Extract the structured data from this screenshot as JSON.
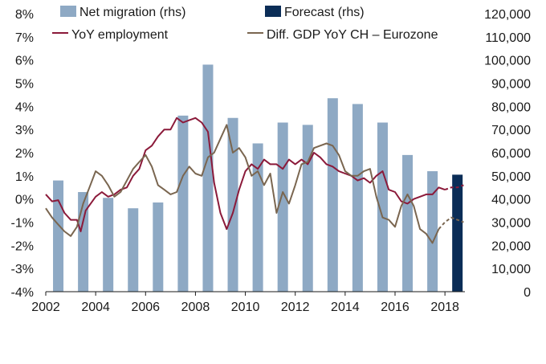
{
  "chart_data": {
    "type": "bar",
    "y_left": {
      "range": [
        -4,
        8
      ],
      "ticks": [
        "8%",
        "7%",
        "6%",
        "5%",
        "4%",
        "3%",
        "2%",
        "1%",
        "0%",
        "-1%",
        "-2%",
        "-3%",
        "-4%"
      ]
    },
    "y_right": {
      "range": [
        0,
        120000
      ],
      "ticks": [
        "120,000",
        "110,000",
        "100,000",
        "90,000",
        "80,000",
        "70,000",
        "60,000",
        "50,000",
        "40,000",
        "30,000",
        "20,000",
        "10,000",
        "0"
      ]
    },
    "x_range": [
      2002,
      2018.8
    ],
    "x_ticks": [
      "2002",
      "2004",
      "2006",
      "2008",
      "2010",
      "2012",
      "2014",
      "2016",
      "2018"
    ],
    "grid": false,
    "legend": [
      {
        "label": "Net migration (rhs)",
        "color": "#8ea9c4",
        "kind": "bar"
      },
      {
        "label": "Forecast (rhs)",
        "color": "#0b2d57",
        "kind": "bar"
      },
      {
        "label": "YoY employment",
        "color": "#8b1a3a",
        "kind": "line"
      },
      {
        "label": "Diff. GDP YoY CH – Eurozone",
        "color": "#7a6650",
        "kind": "line"
      }
    ],
    "series": [
      {
        "name": "Net migration (rhs)",
        "axis": "right",
        "type": "bar",
        "color": "#8ea9c4",
        "x": [
          2002.5,
          2003.5,
          2004.5,
          2005.5,
          2006.5,
          2007.5,
          2008.5,
          2009.5,
          2010.5,
          2011.5,
          2012.5,
          2013.5,
          2014.5,
          2015.5,
          2016.5,
          2017.5
        ],
        "values": [
          48000,
          43000,
          40500,
          36000,
          38500,
          76000,
          98000,
          75000,
          64000,
          73000,
          72000,
          83500,
          81000,
          73000,
          59000,
          52000
        ]
      },
      {
        "name": "Forecast (rhs)",
        "axis": "right",
        "type": "bar",
        "color": "#0b2d57",
        "x": [
          2018.5
        ],
        "values": [
          50500
        ]
      },
      {
        "name": "YoY employment",
        "axis": "left",
        "type": "line",
        "color": "#8b1a3a",
        "points": [
          [
            2002.0,
            0.2
          ],
          [
            2002.25,
            -0.1
          ],
          [
            2002.5,
            -0.05
          ],
          [
            2002.75,
            -0.6
          ],
          [
            2003.0,
            -0.9
          ],
          [
            2003.25,
            -0.9
          ],
          [
            2003.4,
            -1.4
          ],
          [
            2003.6,
            -0.5
          ],
          [
            2003.8,
            -0.2
          ],
          [
            2004.0,
            0.1
          ],
          [
            2004.25,
            0.3
          ],
          [
            2004.5,
            0.1
          ],
          [
            2004.75,
            0.2
          ],
          [
            2005.0,
            0.4
          ],
          [
            2005.25,
            0.5
          ],
          [
            2005.5,
            1.0
          ],
          [
            2005.75,
            1.3
          ],
          [
            2006.0,
            2.1
          ],
          [
            2006.25,
            2.3
          ],
          [
            2006.5,
            2.7
          ],
          [
            2006.75,
            3.0
          ],
          [
            2007.0,
            3.0
          ],
          [
            2007.25,
            3.5
          ],
          [
            2007.5,
            3.3
          ],
          [
            2007.75,
            3.4
          ],
          [
            2008.0,
            3.5
          ],
          [
            2008.25,
            3.3
          ],
          [
            2008.5,
            2.9
          ],
          [
            2008.75,
            0.7
          ],
          [
            2009.0,
            -0.6
          ],
          [
            2009.25,
            -1.3
          ],
          [
            2009.5,
            -0.6
          ],
          [
            2009.75,
            0.4
          ],
          [
            2010.0,
            1.2
          ],
          [
            2010.25,
            1.5
          ],
          [
            2010.5,
            1.3
          ],
          [
            2010.75,
            1.7
          ],
          [
            2011.0,
            1.5
          ],
          [
            2011.25,
            1.5
          ],
          [
            2011.5,
            1.3
          ],
          [
            2011.75,
            1.7
          ],
          [
            2012.0,
            1.5
          ],
          [
            2012.25,
            1.7
          ],
          [
            2012.5,
            1.5
          ],
          [
            2012.75,
            2.0
          ],
          [
            2013.0,
            1.8
          ],
          [
            2013.25,
            1.5
          ],
          [
            2013.5,
            1.4
          ],
          [
            2013.75,
            1.2
          ],
          [
            2014.0,
            1.1
          ],
          [
            2014.25,
            1.0
          ],
          [
            2014.5,
            0.8
          ],
          [
            2014.75,
            0.9
          ],
          [
            2015.0,
            0.7
          ],
          [
            2015.25,
            1.0
          ],
          [
            2015.5,
            1.2
          ],
          [
            2015.75,
            0.4
          ],
          [
            2016.0,
            0.3
          ],
          [
            2016.25,
            -0.1
          ],
          [
            2016.5,
            -0.2
          ],
          [
            2016.75,
            0.0
          ],
          [
            2017.0,
            0.1
          ],
          [
            2017.25,
            0.2
          ],
          [
            2017.5,
            0.2
          ],
          [
            2017.75,
            0.5
          ],
          [
            2018.0,
            0.4
          ]
        ],
        "forecast_points": [
          [
            2018.0,
            0.4
          ],
          [
            2018.25,
            0.5
          ],
          [
            2018.5,
            0.5
          ],
          [
            2018.75,
            0.6
          ]
        ]
      },
      {
        "name": "Diff. GDP YoY CH – Eurozone",
        "axis": "left",
        "type": "line",
        "color": "#7a6650",
        "points": [
          [
            2002.0,
            -0.4
          ],
          [
            2002.25,
            -0.8
          ],
          [
            2002.5,
            -1.1
          ],
          [
            2002.75,
            -1.4
          ],
          [
            2003.0,
            -1.6
          ],
          [
            2003.25,
            -1.2
          ],
          [
            2003.5,
            -0.2
          ],
          [
            2003.75,
            0.5
          ],
          [
            2004.0,
            1.2
          ],
          [
            2004.25,
            1.0
          ],
          [
            2004.5,
            0.6
          ],
          [
            2004.75,
            0.1
          ],
          [
            2005.0,
            0.3
          ],
          [
            2005.25,
            0.8
          ],
          [
            2005.5,
            1.3
          ],
          [
            2005.75,
            1.6
          ],
          [
            2006.0,
            1.9
          ],
          [
            2006.25,
            1.4
          ],
          [
            2006.5,
            0.6
          ],
          [
            2006.75,
            0.4
          ],
          [
            2007.0,
            0.2
          ],
          [
            2007.25,
            0.3
          ],
          [
            2007.5,
            1.0
          ],
          [
            2007.75,
            1.4
          ],
          [
            2008.0,
            1.1
          ],
          [
            2008.25,
            1.0
          ],
          [
            2008.5,
            1.8
          ],
          [
            2008.75,
            2.0
          ],
          [
            2009.0,
            2.6
          ],
          [
            2009.25,
            3.2
          ],
          [
            2009.5,
            2.0
          ],
          [
            2009.75,
            2.2
          ],
          [
            2010.0,
            1.8
          ],
          [
            2010.25,
            1.0
          ],
          [
            2010.5,
            1.2
          ],
          [
            2010.75,
            0.6
          ],
          [
            2011.0,
            1.1
          ],
          [
            2011.25,
            -0.6
          ],
          [
            2011.5,
            0.3
          ],
          [
            2011.75,
            -0.2
          ],
          [
            2012.0,
            0.6
          ],
          [
            2012.25,
            1.5
          ],
          [
            2012.5,
            1.6
          ],
          [
            2012.75,
            2.2
          ],
          [
            2013.0,
            2.3
          ],
          [
            2013.25,
            2.4
          ],
          [
            2013.5,
            2.3
          ],
          [
            2013.75,
            1.9
          ],
          [
            2014.0,
            1.2
          ],
          [
            2014.25,
            1.0
          ],
          [
            2014.5,
            1.0
          ],
          [
            2014.75,
            1.2
          ],
          [
            2015.0,
            1.3
          ],
          [
            2015.25,
            0.1
          ],
          [
            2015.5,
            -0.8
          ],
          [
            2015.75,
            -0.9
          ],
          [
            2016.0,
            -1.2
          ],
          [
            2016.25,
            -0.3
          ],
          [
            2016.5,
            0.2
          ],
          [
            2016.75,
            -0.3
          ],
          [
            2017.0,
            -1.3
          ],
          [
            2017.25,
            -1.5
          ],
          [
            2017.5,
            -1.9
          ],
          [
            2017.75,
            -1.3
          ]
        ],
        "forecast_points": [
          [
            2017.75,
            -1.3
          ],
          [
            2018.0,
            -1.0
          ],
          [
            2018.25,
            -0.8
          ],
          [
            2018.5,
            -0.9
          ],
          [
            2018.75,
            -1.0
          ]
        ]
      }
    ]
  }
}
